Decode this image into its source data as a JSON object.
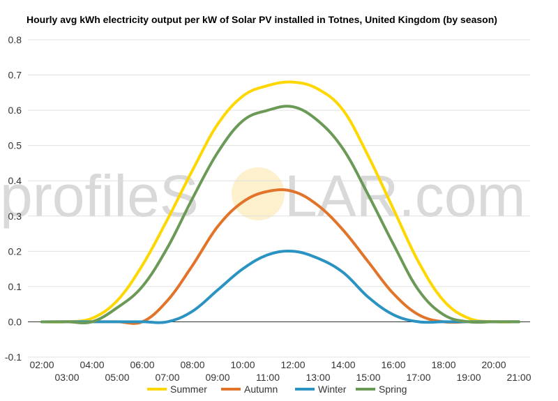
{
  "chart_data": {
    "type": "line",
    "title": "Hourly avg kWh electricity output per kW of Solar PV installed in Totnes, United Kingdom (by season)",
    "xlabel": "",
    "ylabel": "",
    "ylim": [
      -0.1,
      0.8
    ],
    "y_ticks": [
      "-0.1",
      "0.0",
      "0.1",
      "0.2",
      "0.3",
      "0.4",
      "0.5",
      "0.6",
      "0.7",
      "0.8"
    ],
    "x": [
      "02:00",
      "03:00",
      "04:00",
      "05:00",
      "06:00",
      "07:00",
      "08:00",
      "09:00",
      "10:00",
      "11:00",
      "12:00",
      "13:00",
      "14:00",
      "15:00",
      "16:00",
      "17:00",
      "18:00",
      "19:00",
      "20:00",
      "21:00"
    ],
    "grid": true,
    "legend_position": "bottom",
    "series": [
      {
        "name": "Summer",
        "color": "#FFD700",
        "values": [
          0,
          0,
          0.01,
          0.06,
          0.16,
          0.29,
          0.43,
          0.56,
          0.64,
          0.67,
          0.68,
          0.66,
          0.6,
          0.47,
          0.32,
          0.17,
          0.06,
          0.01,
          0,
          0
        ]
      },
      {
        "name": "Autumn",
        "color": "#E2742A",
        "values": [
          0,
          0,
          0,
          0,
          0,
          0.06,
          0.16,
          0.27,
          0.34,
          0.37,
          0.37,
          0.33,
          0.26,
          0.17,
          0.08,
          0.02,
          0,
          0,
          0,
          0
        ]
      },
      {
        "name": "Winter",
        "color": "#2A93C2",
        "values": [
          0,
          0,
          0,
          0,
          0,
          0,
          0.03,
          0.09,
          0.15,
          0.19,
          0.2,
          0.18,
          0.14,
          0.07,
          0.02,
          0,
          0,
          0,
          0,
          0
        ]
      },
      {
        "name": "Spring",
        "color": "#6B9A57",
        "values": [
          0,
          0,
          0,
          0.04,
          0.1,
          0.21,
          0.35,
          0.48,
          0.57,
          0.6,
          0.61,
          0.57,
          0.49,
          0.36,
          0.22,
          0.09,
          0.02,
          0,
          0,
          0
        ]
      }
    ]
  },
  "watermark": {
    "text_before": "profileS",
    "text_after": "LAR.com",
    "sun_color": "#fbecc0"
  }
}
